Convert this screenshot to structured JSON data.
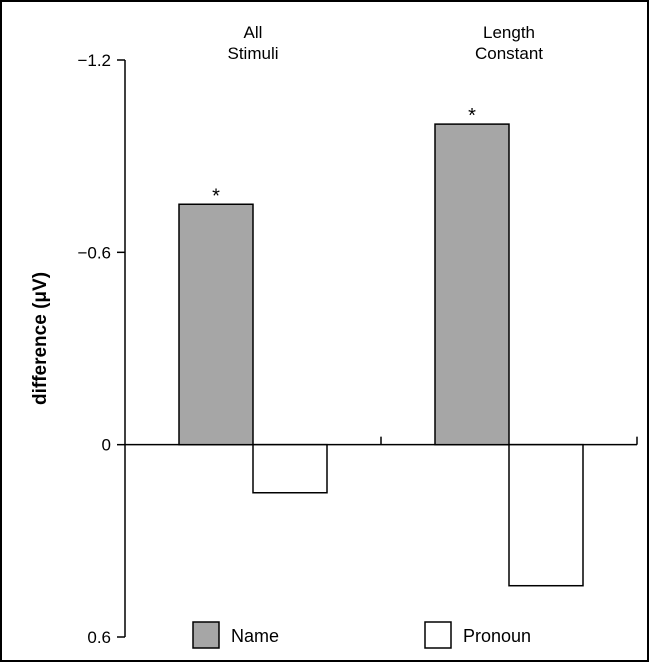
{
  "chart_data": {
    "type": "bar",
    "categories": [
      "All\nStimuli",
      "Length\nConstant"
    ],
    "series": [
      {
        "name": "Name",
        "values": [
          -0.75,
          -1.0
        ],
        "color": "#a6a6a6"
      },
      {
        "name": "Pronoun",
        "values": [
          0.15,
          0.44
        ],
        "color": "#ffffff"
      }
    ],
    "ylabel": "difference (μV)",
    "ylim": [
      -1.2,
      0.6
    ],
    "y_axis_inverted": true,
    "yticks": [
      -1.2,
      -0.6,
      0,
      0.6
    ],
    "ytick_labels": [
      "−1.2",
      "−0.6",
      "0",
      "0.6"
    ],
    "significance_markers": [
      {
        "category": 0,
        "series": "Name",
        "label": "*"
      },
      {
        "category": 1,
        "series": "Name",
        "label": "*"
      }
    ],
    "legend_position": "bottom",
    "grid": false
  }
}
